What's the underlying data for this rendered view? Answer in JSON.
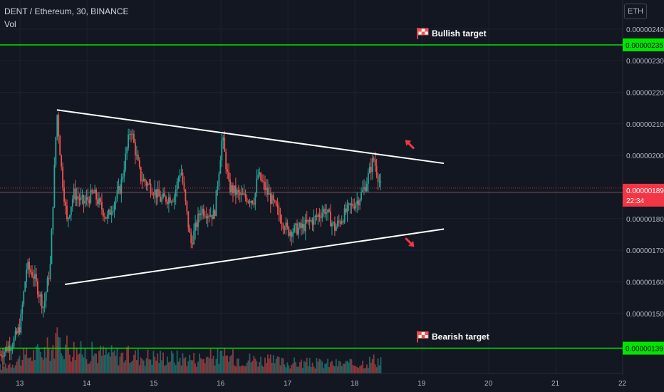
{
  "header": {
    "title": "DENT / Ethereum, 30, BINANCE",
    "volume_label": "Vol",
    "currency": "ETH"
  },
  "chart_data": {
    "type": "candlestick",
    "symbol": "DENT / Ethereum",
    "interval": "30",
    "exchange": "BINANCE",
    "quote_currency": "ETH",
    "x_tick_labels": [
      "13",
      "14",
      "15",
      "16",
      "17",
      "18",
      "19",
      "20",
      "21",
      "22"
    ],
    "x_range": [
      12.7,
      22.0
    ],
    "y_tick_labels": [
      "0.00000240",
      "0.00000230",
      "0.00000220",
      "0.00000210",
      "0.00000200",
      "0.00000180",
      "0.00000170",
      "0.00000160",
      "0.00000150"
    ],
    "ylim": [
      1.31e-06,
      2.492e-06
    ],
    "grid": true,
    "horizontal_levels": [
      {
        "label": "Bullish target",
        "price": 2.35e-06,
        "price_label": "0.00000235",
        "color": "#00e600"
      },
      {
        "label": "Bearish target",
        "price": 1.39e-06,
        "price_label": "0.00000139",
        "color": "#00e600"
      }
    ],
    "current_price": {
      "price": 1.89e-06,
      "label": "0.00000189",
      "countdown": "22:34",
      "color": "#f23645"
    },
    "trendlines": [
      {
        "role": "upper",
        "x": [
          13.55,
          19.33
        ],
        "y": [
          2.144e-06,
          1.975e-06
        ],
        "color": "#ffffff"
      },
      {
        "role": "lower",
        "x": [
          13.67,
          19.33
        ],
        "y": [
          1.592e-06,
          1.767e-06
        ],
        "color": "#ffffff"
      }
    ],
    "arrows": [
      {
        "direction": "up",
        "x": 18.82,
        "y": 2.035e-06,
        "color": "#f23645"
      },
      {
        "direction": "down",
        "x": 18.82,
        "y": 1.725e-06,
        "color": "#f23645"
      }
    ],
    "ohlc_anchors": [
      {
        "x": 12.7,
        "y": 1.37e-06
      },
      {
        "x": 12.9,
        "y": 1.41e-06
      },
      {
        "x": 13.0,
        "y": 1.46e-06
      },
      {
        "x": 13.1,
        "y": 1.65e-06
      },
      {
        "x": 13.2,
        "y": 1.62e-06
      },
      {
        "x": 13.35,
        "y": 1.52e-06
      },
      {
        "x": 13.45,
        "y": 1.65e-06
      },
      {
        "x": 13.55,
        "y": 2.14e-06
      },
      {
        "x": 13.62,
        "y": 1.95e-06
      },
      {
        "x": 13.7,
        "y": 1.79e-06
      },
      {
        "x": 13.8,
        "y": 1.88e-06
      },
      {
        "x": 13.95,
        "y": 1.85e-06
      },
      {
        "x": 14.1,
        "y": 1.88e-06
      },
      {
        "x": 14.3,
        "y": 1.8e-06
      },
      {
        "x": 14.5,
        "y": 1.9e-06
      },
      {
        "x": 14.65,
        "y": 2.09e-06
      },
      {
        "x": 14.8,
        "y": 1.93e-06
      },
      {
        "x": 15.0,
        "y": 1.89e-06
      },
      {
        "x": 15.1,
        "y": 1.86e-06
      },
      {
        "x": 15.3,
        "y": 1.87e-06
      },
      {
        "x": 15.4,
        "y": 1.96e-06
      },
      {
        "x": 15.55,
        "y": 1.72e-06
      },
      {
        "x": 15.7,
        "y": 1.83e-06
      },
      {
        "x": 15.9,
        "y": 1.81e-06
      },
      {
        "x": 16.02,
        "y": 2.06e-06
      },
      {
        "x": 16.12,
        "y": 1.9e-06
      },
      {
        "x": 16.3,
        "y": 1.87e-06
      },
      {
        "x": 16.5,
        "y": 1.86e-06
      },
      {
        "x": 16.55,
        "y": 1.94e-06
      },
      {
        "x": 16.8,
        "y": 1.84e-06
      },
      {
        "x": 17.0,
        "y": 1.76e-06
      },
      {
        "x": 17.2,
        "y": 1.77e-06
      },
      {
        "x": 17.4,
        "y": 1.8e-06
      },
      {
        "x": 17.55,
        "y": 1.83e-06
      },
      {
        "x": 17.7,
        "y": 1.77e-06
      },
      {
        "x": 17.9,
        "y": 1.83e-06
      },
      {
        "x": 18.05,
        "y": 1.86e-06
      },
      {
        "x": 18.15,
        "y": 1.9e-06
      },
      {
        "x": 18.28,
        "y": 1.99e-06
      },
      {
        "x": 18.4,
        "y": 1.89e-06
      }
    ],
    "volume_anchors": [
      {
        "x": 12.7,
        "v": 0.15
      },
      {
        "x": 13.1,
        "v": 0.4
      },
      {
        "x": 13.4,
        "v": 0.55
      },
      {
        "x": 13.6,
        "v": 0.75
      },
      {
        "x": 13.9,
        "v": 0.5
      },
      {
        "x": 14.6,
        "v": 0.42
      },
      {
        "x": 15.6,
        "v": 0.35
      },
      {
        "x": 16.0,
        "v": 0.4
      },
      {
        "x": 17.0,
        "v": 0.25
      },
      {
        "x": 18.0,
        "v": 0.22
      },
      {
        "x": 18.3,
        "v": 0.32
      }
    ]
  }
}
